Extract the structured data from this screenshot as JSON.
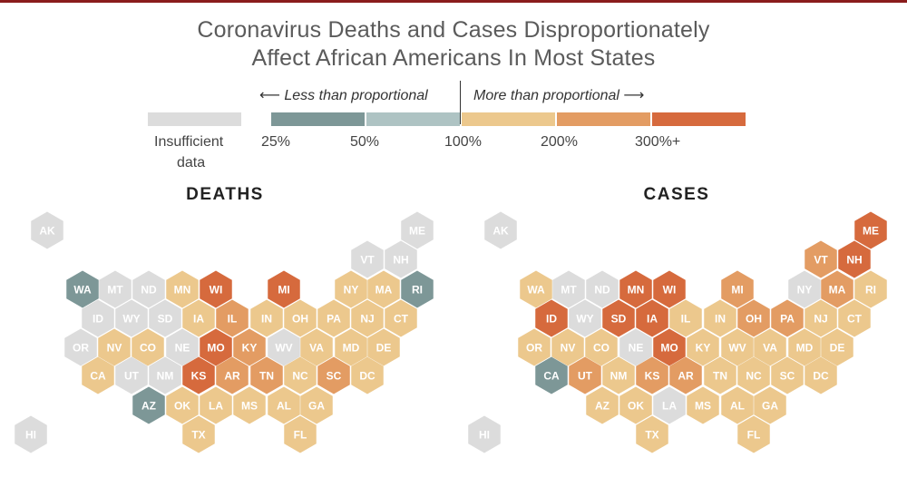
{
  "title": {
    "line1": "Coronavirus Deaths and Cases Disproportionately",
    "line2": "Affect African Americans In Most States"
  },
  "legend": {
    "less_label": "⟵ Less than proportional",
    "more_label": "More than proportional ⟶",
    "insufficient_label_1": "Insufficient",
    "insufficient_label_2": "data",
    "ticks": [
      "25%",
      "50%",
      "100%",
      "200%",
      "300%+"
    ]
  },
  "colors": {
    "insufficient": "#dcdcdc",
    "c25": "#7d9797",
    "c50": "#aec3c3",
    "c100": "#ecc88d",
    "c200": "#e39c63",
    "c300": "#d66a3d"
  },
  "maps": [
    {
      "title": "DEATHS",
      "states": [
        {
          "abbr": "AK",
          "cat": "na"
        },
        {
          "abbr": "ME",
          "cat": "na"
        },
        {
          "abbr": "VT",
          "cat": "na"
        },
        {
          "abbr": "NH",
          "cat": "na"
        },
        {
          "abbr": "WA",
          "cat": "c25"
        },
        {
          "abbr": "MT",
          "cat": "na"
        },
        {
          "abbr": "ND",
          "cat": "na"
        },
        {
          "abbr": "MN",
          "cat": "c100"
        },
        {
          "abbr": "WI",
          "cat": "c300"
        },
        {
          "abbr": "MI",
          "cat": "c300"
        },
        {
          "abbr": "NY",
          "cat": "c100"
        },
        {
          "abbr": "MA",
          "cat": "c100"
        },
        {
          "abbr": "RI",
          "cat": "c25"
        },
        {
          "abbr": "ID",
          "cat": "na"
        },
        {
          "abbr": "WY",
          "cat": "na"
        },
        {
          "abbr": "SD",
          "cat": "na"
        },
        {
          "abbr": "IA",
          "cat": "c100"
        },
        {
          "abbr": "IL",
          "cat": "c200"
        },
        {
          "abbr": "IN",
          "cat": "c100"
        },
        {
          "abbr": "OH",
          "cat": "c100"
        },
        {
          "abbr": "PA",
          "cat": "c100"
        },
        {
          "abbr": "NJ",
          "cat": "c100"
        },
        {
          "abbr": "CT",
          "cat": "c100"
        },
        {
          "abbr": "OR",
          "cat": "na"
        },
        {
          "abbr": "NV",
          "cat": "c100"
        },
        {
          "abbr": "CO",
          "cat": "c100"
        },
        {
          "abbr": "NE",
          "cat": "na"
        },
        {
          "abbr": "MO",
          "cat": "c300"
        },
        {
          "abbr": "KY",
          "cat": "c200"
        },
        {
          "abbr": "WV",
          "cat": "na"
        },
        {
          "abbr": "VA",
          "cat": "c100"
        },
        {
          "abbr": "MD",
          "cat": "c100"
        },
        {
          "abbr": "DE",
          "cat": "c100"
        },
        {
          "abbr": "CA",
          "cat": "c100"
        },
        {
          "abbr": "UT",
          "cat": "na"
        },
        {
          "abbr": "NM",
          "cat": "na"
        },
        {
          "abbr": "KS",
          "cat": "c300"
        },
        {
          "abbr": "AR",
          "cat": "c200"
        },
        {
          "abbr": "TN",
          "cat": "c200"
        },
        {
          "abbr": "NC",
          "cat": "c100"
        },
        {
          "abbr": "SC",
          "cat": "c200"
        },
        {
          "abbr": "DC",
          "cat": "c100"
        },
        {
          "abbr": "AZ",
          "cat": "c25"
        },
        {
          "abbr": "OK",
          "cat": "c100"
        },
        {
          "abbr": "LA",
          "cat": "c100"
        },
        {
          "abbr": "MS",
          "cat": "c100"
        },
        {
          "abbr": "AL",
          "cat": "c100"
        },
        {
          "abbr": "GA",
          "cat": "c100"
        },
        {
          "abbr": "HI",
          "cat": "na"
        },
        {
          "abbr": "TX",
          "cat": "c100"
        },
        {
          "abbr": "FL",
          "cat": "c100"
        }
      ]
    },
    {
      "title": "CASES",
      "states": [
        {
          "abbr": "AK",
          "cat": "na"
        },
        {
          "abbr": "ME",
          "cat": "c300"
        },
        {
          "abbr": "VT",
          "cat": "c200"
        },
        {
          "abbr": "NH",
          "cat": "c300"
        },
        {
          "abbr": "WA",
          "cat": "c100"
        },
        {
          "abbr": "MT",
          "cat": "na"
        },
        {
          "abbr": "ND",
          "cat": "na"
        },
        {
          "abbr": "MN",
          "cat": "c300"
        },
        {
          "abbr": "WI",
          "cat": "c300"
        },
        {
          "abbr": "MI",
          "cat": "c200"
        },
        {
          "abbr": "NY",
          "cat": "na"
        },
        {
          "abbr": "MA",
          "cat": "c200"
        },
        {
          "abbr": "RI",
          "cat": "c100"
        },
        {
          "abbr": "ID",
          "cat": "c300"
        },
        {
          "abbr": "WY",
          "cat": "na"
        },
        {
          "abbr": "SD",
          "cat": "c300"
        },
        {
          "abbr": "IA",
          "cat": "c300"
        },
        {
          "abbr": "IL",
          "cat": "c100"
        },
        {
          "abbr": "IN",
          "cat": "c100"
        },
        {
          "abbr": "OH",
          "cat": "c200"
        },
        {
          "abbr": "PA",
          "cat": "c200"
        },
        {
          "abbr": "NJ",
          "cat": "c100"
        },
        {
          "abbr": "CT",
          "cat": "c100"
        },
        {
          "abbr": "OR",
          "cat": "c100"
        },
        {
          "abbr": "NV",
          "cat": "c100"
        },
        {
          "abbr": "CO",
          "cat": "c100"
        },
        {
          "abbr": "NE",
          "cat": "na"
        },
        {
          "abbr": "MO",
          "cat": "c300"
        },
        {
          "abbr": "KY",
          "cat": "c100"
        },
        {
          "abbr": "WV",
          "cat": "c100"
        },
        {
          "abbr": "VA",
          "cat": "c100"
        },
        {
          "abbr": "MD",
          "cat": "c100"
        },
        {
          "abbr": "DE",
          "cat": "c100"
        },
        {
          "abbr": "CA",
          "cat": "c25"
        },
        {
          "abbr": "UT",
          "cat": "c200"
        },
        {
          "abbr": "NM",
          "cat": "c100"
        },
        {
          "abbr": "KS",
          "cat": "c200"
        },
        {
          "abbr": "AR",
          "cat": "c200"
        },
        {
          "abbr": "TN",
          "cat": "c100"
        },
        {
          "abbr": "NC",
          "cat": "c100"
        },
        {
          "abbr": "SC",
          "cat": "c100"
        },
        {
          "abbr": "DC",
          "cat": "c100"
        },
        {
          "abbr": "AZ",
          "cat": "c100"
        },
        {
          "abbr": "OK",
          "cat": "c100"
        },
        {
          "abbr": "LA",
          "cat": "na"
        },
        {
          "abbr": "MS",
          "cat": "c100"
        },
        {
          "abbr": "AL",
          "cat": "c100"
        },
        {
          "abbr": "GA",
          "cat": "c100"
        },
        {
          "abbr": "HI",
          "cat": "na"
        },
        {
          "abbr": "TX",
          "cat": "c100"
        },
        {
          "abbr": "FL",
          "cat": "c100"
        }
      ]
    }
  ]
}
